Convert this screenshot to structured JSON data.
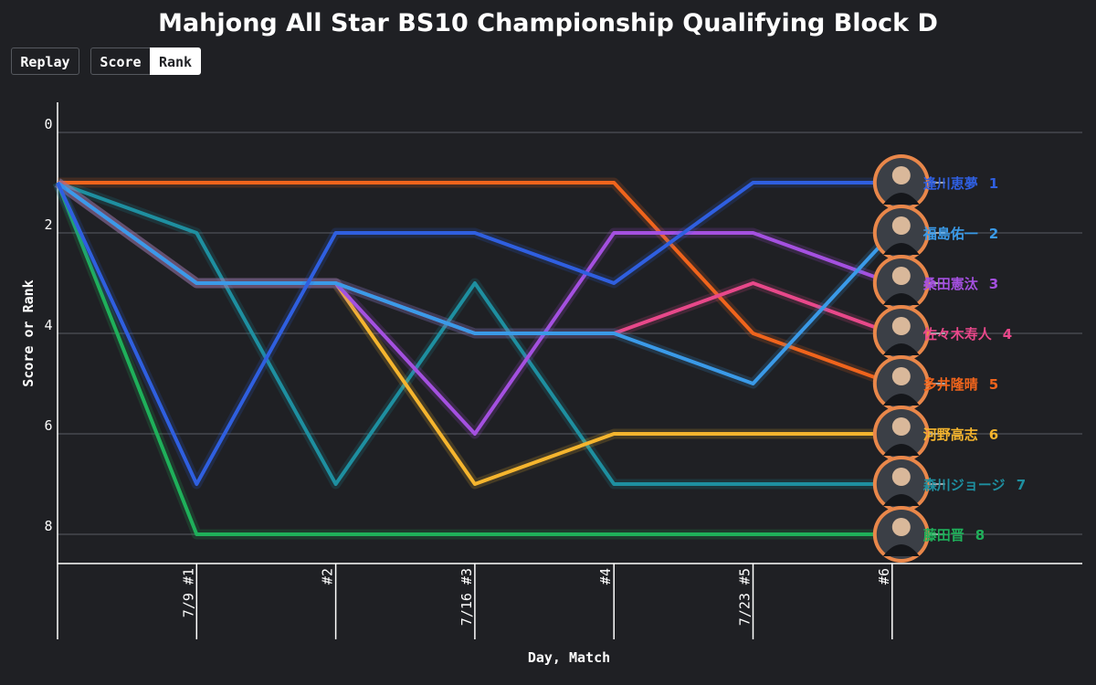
{
  "title": "Mahjong All Star BS10 Championship Qualifying Block D",
  "controls": {
    "replay_label": "Replay",
    "score_label": "Score",
    "rank_label": "Rank",
    "active_mode": "Rank"
  },
  "chart_data": {
    "type": "line",
    "title": "Mahjong All Star BS10 Championship Qualifying Block D",
    "xlabel": "Day, Match",
    "ylabel": "Score or Rank",
    "categories": [
      "",
      "7/9 #1",
      "#2",
      "7/16 #3",
      "#4",
      "7/23 #5",
      "#6"
    ],
    "y_ticks": [
      0,
      2,
      4,
      6,
      8
    ],
    "ylim": [
      0,
      8.5
    ],
    "y_inverted": true,
    "grid": true,
    "series": [
      {
        "name": "逢川恵夢",
        "final_rank": 1,
        "color": "#2f5fe0",
        "values": [
          1,
          7,
          2,
          2,
          3,
          1,
          1
        ]
      },
      {
        "name": "福島佑一",
        "final_rank": 2,
        "color": "#3a9ae8",
        "values": [
          1,
          3,
          3,
          4,
          4,
          5,
          2
        ]
      },
      {
        "name": "桑田憲汰",
        "final_rank": 3,
        "color": "#a450e0",
        "values": [
          1,
          3,
          3,
          6,
          2,
          2,
          3
        ]
      },
      {
        "name": "佐々木寿人",
        "final_rank": 4,
        "color": "#e8488a",
        "values": [
          1,
          3,
          3,
          4,
          4,
          3,
          4
        ]
      },
      {
        "name": "多井隆晴",
        "final_rank": 5,
        "color": "#f0641c",
        "values": [
          1,
          1,
          1,
          1,
          1,
          4,
          5
        ]
      },
      {
        "name": "河野高志",
        "final_rank": 6,
        "color": "#f5b52e",
        "values": [
          1,
          3,
          3,
          7,
          6,
          6,
          6
        ]
      },
      {
        "name": "森川ジョージ",
        "final_rank": 7,
        "color": "#1e8fa0",
        "values": [
          1,
          2,
          7,
          3,
          7,
          7,
          7
        ]
      },
      {
        "name": "藤田晋",
        "final_rank": 8,
        "color": "#1fb05a",
        "values": [
          1,
          8,
          8,
          8,
          8,
          8,
          8
        ]
      }
    ]
  }
}
